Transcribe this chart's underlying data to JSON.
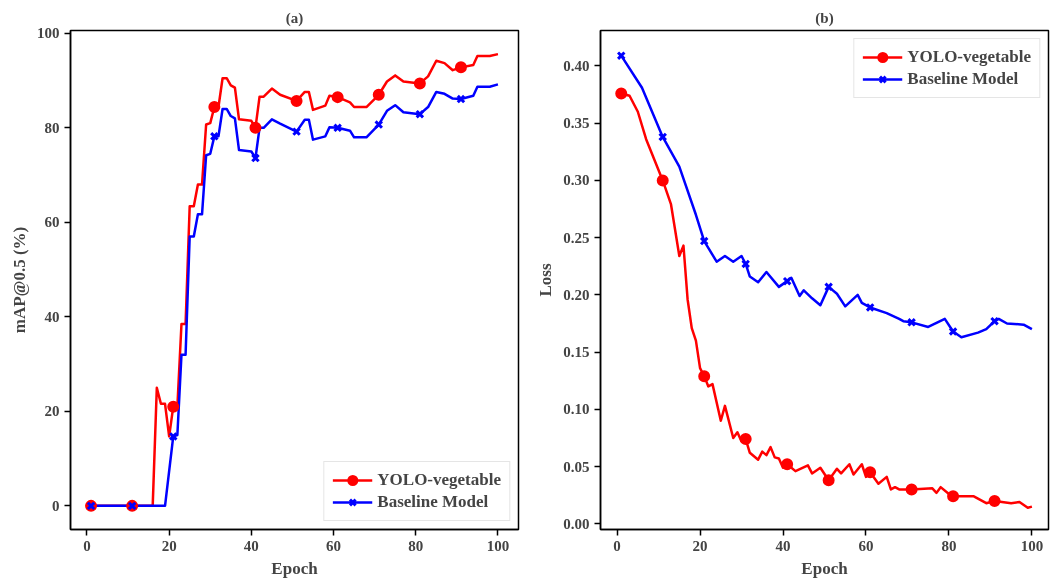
{
  "chart_data": [
    {
      "type": "line",
      "title": "(a)",
      "xlabel": "Epoch",
      "ylabel": "mAP@0.5 (%)",
      "xlim": [
        -4,
        105
      ],
      "ylim": [
        -5,
        100.6
      ],
      "xticks": [
        0,
        20,
        40,
        60,
        80,
        100
      ],
      "yticks": [
        0,
        20,
        40,
        60,
        80,
        100
      ],
      "grid": false,
      "legend": "bottom right",
      "line_style": "solid",
      "series": [
        {
          "name": "YOLO-vegetable",
          "color": "#ff0000",
          "marker": "none",
          "x": [
            1,
            11,
            16,
            17,
            18,
            19,
            20,
            21,
            22,
            23,
            24,
            25,
            26,
            27,
            28,
            29,
            30,
            31,
            32,
            33,
            34,
            35,
            36,
            37,
            40,
            41,
            42,
            43,
            45,
            47,
            51,
            53,
            54,
            55,
            58,
            59,
            61,
            64,
            65,
            68,
            71,
            73,
            75,
            77,
            81,
            83,
            85,
            87,
            89,
            91,
            94,
            95,
            98,
            100
          ],
          "values": [
            0,
            0,
            0,
            25,
            21.6,
            21.6,
            14.7,
            21,
            21,
            38.5,
            38.5,
            63.4,
            63.4,
            68,
            68,
            80.7,
            81,
            84.4,
            84.4,
            90.5,
            90.5,
            89,
            88.5,
            81.8,
            81.5,
            80,
            86.6,
            86.6,
            88.3,
            87,
            85.7,
            87.6,
            87.6,
            83.8,
            84.7,
            86.8,
            86.5,
            85.4,
            84.4,
            84.4,
            87,
            89.8,
            91.1,
            89.8,
            89.4,
            90.9,
            94.2,
            93.7,
            92.2,
            92.8,
            93.3,
            95.2,
            95.2,
            95.6
          ]
        },
        {
          "name": "Baseline Model",
          "color": "#0000ff",
          "marker": "none",
          "x": [
            1,
            11,
            19,
            21,
            22,
            23,
            24,
            25,
            26,
            27,
            28,
            29,
            30,
            31,
            32,
            33,
            34,
            35,
            36,
            37,
            40,
            41,
            42,
            43,
            45,
            47,
            51,
            53,
            54,
            55,
            58,
            59,
            61,
            64,
            65,
            68,
            71,
            73,
            75,
            77,
            81,
            83,
            85,
            87,
            89,
            91,
            94,
            95,
            98,
            100
          ],
          "values": [
            0,
            0,
            0,
            14.7,
            15,
            32,
            32,
            57,
            57,
            61.7,
            61.7,
            74.2,
            74.5,
            78.2,
            78.2,
            84,
            84,
            82.5,
            82,
            75.3,
            75,
            73.6,
            80,
            80,
            81.8,
            80.9,
            79.2,
            81.7,
            81.7,
            77.5,
            78.2,
            80.1,
            80,
            79.4,
            78,
            78,
            80.7,
            83.6,
            84.8,
            83.3,
            82.9,
            84.4,
            87.6,
            87.2,
            86.2,
            86.1,
            86.8,
            88.7,
            88.7,
            89.2
          ]
        },
        {
          "type": "scatter",
          "color": "#ff0000",
          "marker": "circle",
          "x": [
            1,
            11,
            21,
            31,
            41,
            51,
            61,
            71,
            81,
            91
          ],
          "values": [
            0,
            0,
            21,
            84.4,
            80,
            85.7,
            86.5,
            87,
            89.4,
            92.8
          ]
        },
        {
          "type": "scatter",
          "color": "#0000ff",
          "marker": "cross",
          "x": [
            1,
            11,
            21,
            31,
            41,
            51,
            61,
            71,
            81,
            91
          ],
          "values": [
            0,
            0,
            14.7,
            78.2,
            73.6,
            79.2,
            80,
            80.7,
            82.9,
            86.1
          ]
        }
      ]
    },
    {
      "type": "line",
      "title": "(b)",
      "xlabel": "Epoch",
      "ylabel": "Loss",
      "xlim": [
        -4,
        104
      ],
      "ylim": [
        -0.005,
        0.431
      ],
      "xticks": [
        0,
        20,
        40,
        60,
        80,
        100
      ],
      "yticks": [
        {
          "value": 0,
          "label": "0.00"
        },
        {
          "value": 0.05,
          "label": "0.05"
        },
        {
          "value": 0.1,
          "label": "0.10"
        },
        {
          "value": 0.15,
          "label": "0.15"
        },
        {
          "value": 0.2,
          "label": "0.20"
        },
        {
          "value": 0.25,
          "label": "0.25"
        },
        {
          "value": 0.3,
          "label": "0.30"
        },
        {
          "value": 0.35,
          "label": "0.35"
        },
        {
          "value": 0.4,
          "label": "0.40"
        }
      ],
      "grid": false,
      "legend": "top right",
      "line_style": "solid",
      "series": [
        {
          "name": "YOLO-vegetable",
          "color": "#ff0000",
          "marker": "none",
          "x": [
            1,
            3,
            5,
            7,
            11,
            13,
            15,
            16,
            17,
            18,
            19,
            20,
            21,
            22,
            23,
            25,
            26,
            28,
            29,
            30,
            31,
            32,
            34,
            35,
            36,
            37,
            38,
            39,
            40,
            41,
            43,
            46,
            47,
            49,
            51,
            53,
            54,
            56,
            57,
            59,
            60,
            61,
            63,
            65,
            66,
            67,
            68,
            71,
            76,
            77,
            78,
            80,
            81,
            86,
            89,
            91,
            95,
            97,
            99,
            100
          ],
          "values": [
            0.376,
            0.374,
            0.36,
            0.336,
            0.3,
            0.279,
            0.234,
            0.243,
            0.196,
            0.171,
            0.16,
            0.136,
            0.129,
            0.12,
            0.122,
            0.09,
            0.103,
            0.075,
            0.08,
            0.072,
            0.074,
            0.062,
            0.056,
            0.063,
            0.06,
            0.067,
            0.058,
            0.057,
            0.049,
            0.052,
            0.046,
            0.051,
            0.044,
            0.049,
            0.038,
            0.048,
            0.044,
            0.052,
            0.043,
            0.052,
            0.041,
            0.045,
            0.035,
            0.041,
            0.03,
            0.032,
            0.03,
            0.03,
            0.031,
            0.027,
            0.032,
            0.026,
            0.024,
            0.024,
            0.018,
            0.02,
            0.018,
            0.019,
            0.014,
            0.015
          ]
        },
        {
          "name": "Baseline Model",
          "color": "#0000ff",
          "marker": "none",
          "x": [
            1,
            6,
            11,
            15,
            19,
            21,
            24,
            26,
            28,
            30,
            31,
            32,
            34,
            36,
            39,
            41,
            42,
            44,
            45,
            47,
            49,
            51,
            53,
            55,
            58,
            59,
            61,
            65,
            68,
            69,
            71,
            75,
            79,
            81,
            83,
            87,
            89,
            91,
            92,
            94,
            98,
            100
          ],
          "values": [
            0.409,
            0.381,
            0.338,
            0.312,
            0.27,
            0.247,
            0.229,
            0.234,
            0.229,
            0.234,
            0.227,
            0.216,
            0.211,
            0.22,
            0.207,
            0.212,
            0.215,
            0.199,
            0.204,
            0.197,
            0.191,
            0.207,
            0.201,
            0.19,
            0.2,
            0.193,
            0.189,
            0.184,
            0.179,
            0.177,
            0.176,
            0.172,
            0.179,
            0.168,
            0.163,
            0.167,
            0.17,
            0.177,
            0.179,
            0.175,
            0.174,
            0.17
          ]
        },
        {
          "type": "scatter",
          "color": "#ff0000",
          "marker": "circle",
          "x": [
            1,
            11,
            21,
            31,
            41,
            51,
            61,
            71,
            81,
            91
          ],
          "values": [
            0.376,
            0.3,
            0.129,
            0.074,
            0.052,
            0.038,
            0.045,
            0.03,
            0.024,
            0.02
          ]
        },
        {
          "type": "scatter",
          "color": "#0000ff",
          "marker": "cross",
          "x": [
            1,
            11,
            21,
            31,
            41,
            51,
            61,
            71,
            81,
            91
          ],
          "values": [
            0.409,
            0.338,
            0.247,
            0.227,
            0.212,
            0.207,
            0.189,
            0.176,
            0.168,
            0.177
          ]
        }
      ]
    }
  ]
}
